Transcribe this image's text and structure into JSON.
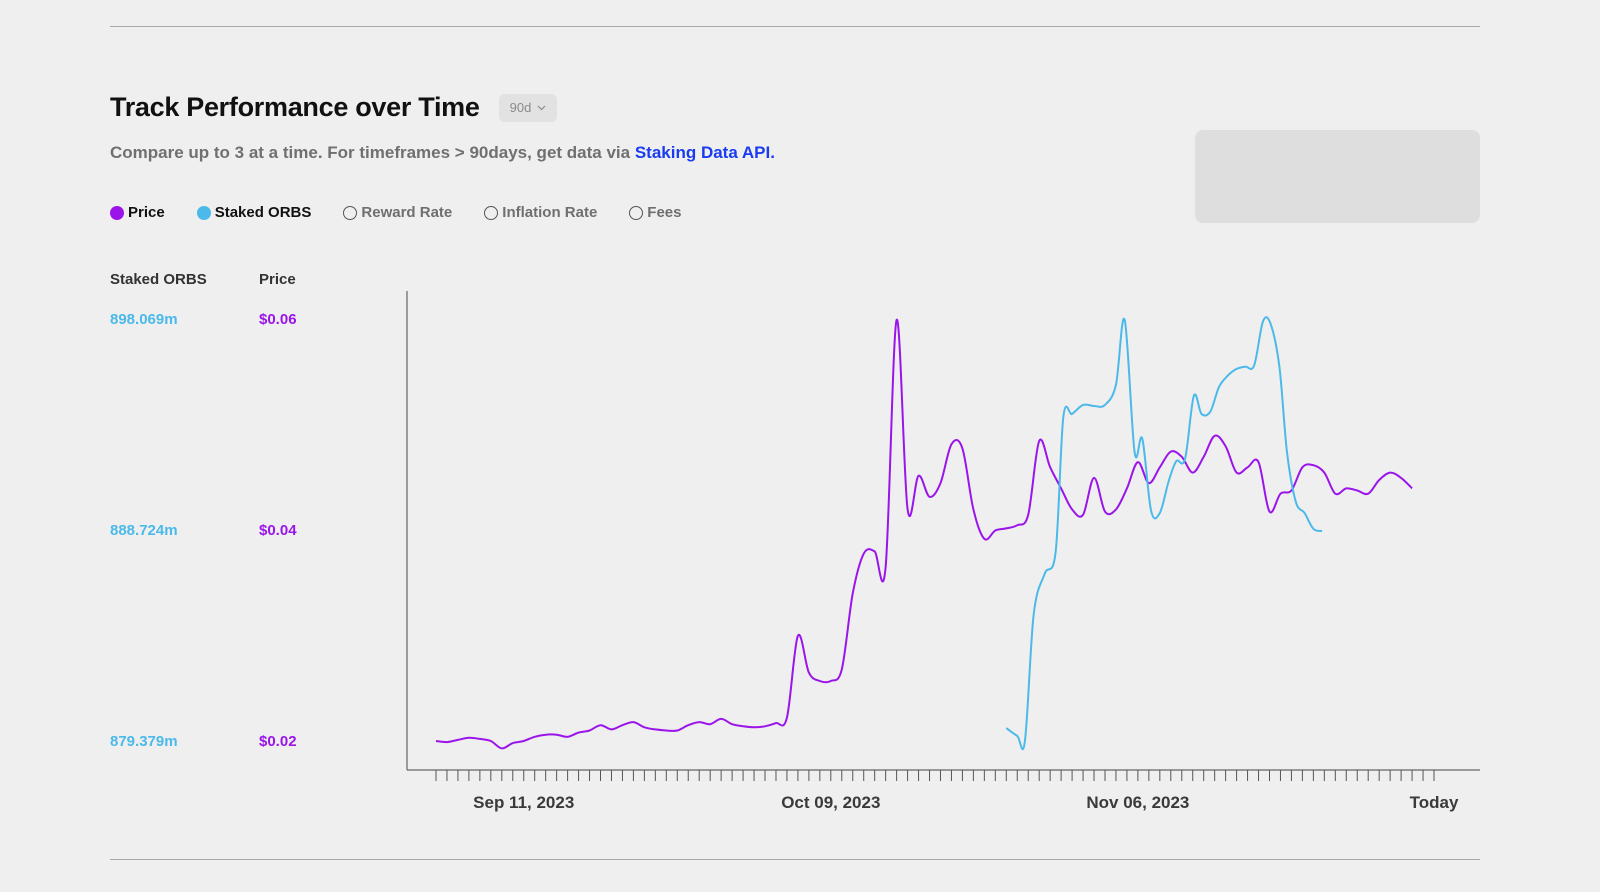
{
  "header": {
    "title": "Track Performance over Time",
    "period_label": "90d",
    "subtitle_text": "Compare up to 3 at a time. For timeframes > 90days, get data via",
    "subtitle_link": "Staking Data API."
  },
  "legend": [
    {
      "label": "Price",
      "active": true,
      "color": "#9b14ea"
    },
    {
      "label": "Staked ORBS",
      "active": true,
      "color": "#4bb9ea"
    },
    {
      "label": "Reward Rate",
      "active": false
    },
    {
      "label": "Inflation Rate",
      "active": false
    },
    {
      "label": "Fees",
      "active": false
    }
  ],
  "axes": {
    "left_header": "Staked ORBS",
    "right_header": "Price",
    "staked_ticks": [
      "898.069m",
      "888.724m",
      "879.379m"
    ],
    "price_ticks": [
      "$0.06",
      "$0.04",
      "$0.02"
    ]
  },
  "chart_data": {
    "type": "line",
    "x_labels": [
      "Sep 11, 2023",
      "Oct 09, 2023",
      "Nov 06, 2023",
      "Today"
    ],
    "x_label_days": [
      8,
      36,
      64,
      91
    ],
    "x_range_days": [
      0,
      91
    ],
    "ylim_price": [
      0.02,
      0.06
    ],
    "ylim_staked": [
      879.379,
      898.069
    ],
    "y_unit_staked": "m",
    "grid": false,
    "series": [
      {
        "name": "Price",
        "axis": "price",
        "color": "#9b14ea",
        "points": [
          [
            0,
            0.02
          ],
          [
            1,
            0.0199
          ],
          [
            2,
            0.0201
          ],
          [
            3,
            0.0203
          ],
          [
            4,
            0.0202
          ],
          [
            5,
            0.02
          ],
          [
            6,
            0.0193
          ],
          [
            7,
            0.0198
          ],
          [
            8,
            0.02
          ],
          [
            9,
            0.0204
          ],
          [
            10,
            0.0206
          ],
          [
            11,
            0.0206
          ],
          [
            12,
            0.0204
          ],
          [
            13,
            0.0208
          ],
          [
            14,
            0.021
          ],
          [
            15,
            0.0215
          ],
          [
            16,
            0.0211
          ],
          [
            17,
            0.0215
          ],
          [
            18,
            0.0218
          ],
          [
            19,
            0.0213
          ],
          [
            20,
            0.0211
          ],
          [
            21,
            0.021
          ],
          [
            22,
            0.021
          ],
          [
            23,
            0.0215
          ],
          [
            24,
            0.0218
          ],
          [
            25,
            0.0216
          ],
          [
            26,
            0.0221
          ],
          [
            27,
            0.0216
          ],
          [
            28,
            0.0214
          ],
          [
            29,
            0.0213
          ],
          [
            30,
            0.0214
          ],
          [
            31,
            0.0217
          ],
          [
            32,
            0.0222
          ],
          [
            33,
            0.03
          ],
          [
            34,
            0.0265
          ],
          [
            35,
            0.0257
          ],
          [
            36,
            0.0257
          ],
          [
            37,
            0.0268
          ],
          [
            38,
            0.034
          ],
          [
            39,
            0.0378
          ],
          [
            40,
            0.038
          ],
          [
            41,
            0.0365
          ],
          [
            42,
            0.06
          ],
          [
            43,
            0.042
          ],
          [
            44,
            0.0452
          ],
          [
            45,
            0.0432
          ],
          [
            46,
            0.0445
          ],
          [
            47,
            0.0482
          ],
          [
            48,
            0.0478
          ],
          [
            49,
            0.042
          ],
          [
            50,
            0.0392
          ],
          [
            51,
            0.04
          ],
          [
            52,
            0.0402
          ],
          [
            53,
            0.0405
          ],
          [
            54,
            0.0415
          ],
          [
            55,
            0.0485
          ],
          [
            56,
            0.046
          ],
          [
            57,
            0.044
          ],
          [
            58,
            0.042
          ],
          [
            59,
            0.0415
          ],
          [
            60,
            0.045
          ],
          [
            61,
            0.0418
          ],
          [
            62,
            0.042
          ],
          [
            63,
            0.044
          ],
          [
            64,
            0.0465
          ],
          [
            65,
            0.0445
          ],
          [
            66,
            0.046
          ],
          [
            67,
            0.0475
          ],
          [
            68,
            0.047
          ],
          [
            69,
            0.0455
          ],
          [
            70,
            0.047
          ],
          [
            71,
            0.049
          ],
          [
            72,
            0.048
          ],
          [
            73,
            0.0455
          ],
          [
            74,
            0.046
          ],
          [
            75,
            0.0465
          ],
          [
            76,
            0.0418
          ],
          [
            77,
            0.0435
          ],
          [
            78,
            0.0438
          ],
          [
            79,
            0.046
          ],
          [
            80,
            0.0462
          ],
          [
            81,
            0.0455
          ],
          [
            82,
            0.0435
          ],
          [
            83,
            0.044
          ],
          [
            84,
            0.0438
          ],
          [
            85,
            0.0435
          ],
          [
            86,
            0.0448
          ],
          [
            87,
            0.0455
          ],
          [
            88,
            0.045
          ],
          [
            89,
            0.044
          ]
        ]
      },
      {
        "name": "Staked ORBS",
        "axis": "staked",
        "color": "#4bb9ea",
        "points": [
          [
            52,
            879.95
          ],
          [
            53,
            879.6
          ],
          [
            53.7,
            879.38
          ],
          [
            54.5,
            885.0
          ],
          [
            55.5,
            886.8
          ],
          [
            56.5,
            887.75
          ],
          [
            57.2,
            893.75
          ],
          [
            58,
            893.9
          ],
          [
            59,
            894.3
          ],
          [
            60,
            894.25
          ],
          [
            61,
            894.3
          ],
          [
            62,
            895.2
          ],
          [
            62.8,
            898.07
          ],
          [
            63.7,
            892.2
          ],
          [
            64.4,
            892.8
          ],
          [
            65.2,
            889.6
          ],
          [
            66.0,
            889.5
          ],
          [
            66.8,
            890.9
          ],
          [
            67.5,
            891.8
          ],
          [
            68.3,
            891.9
          ],
          [
            69.1,
            894.7
          ],
          [
            69.8,
            893.9
          ],
          [
            70.6,
            894.0
          ],
          [
            71.4,
            895.1
          ],
          [
            72.2,
            895.6
          ],
          [
            73.0,
            895.9
          ],
          [
            73.8,
            896.0
          ],
          [
            74.6,
            896.05
          ],
          [
            75.4,
            898.0
          ],
          [
            76.1,
            897.9
          ],
          [
            76.9,
            896.0
          ],
          [
            77.6,
            892.2
          ],
          [
            78.4,
            890.0
          ],
          [
            79.2,
            889.5
          ],
          [
            80.0,
            888.8
          ],
          [
            80.8,
            888.7
          ]
        ]
      }
    ]
  }
}
